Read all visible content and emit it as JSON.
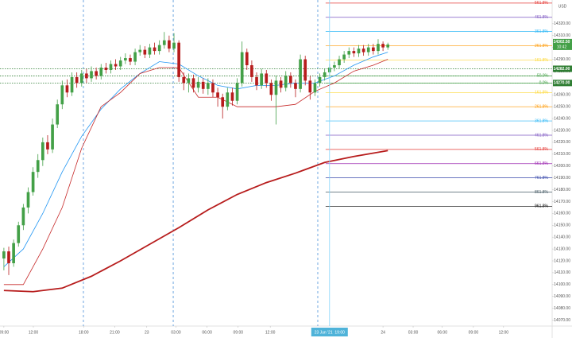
{
  "chart_data": {
    "type": "candlestick",
    "currency": "USD",
    "up_color": "#43a047",
    "down_color": "#b71c1c",
    "x": [
      0,
      0.5,
      1,
      1.5,
      2,
      2.5,
      3,
      3.5,
      4,
      4.5,
      5,
      5.5,
      6,
      6.5,
      7,
      7.5,
      8,
      8.5,
      9,
      9.5,
      10,
      10.5,
      11,
      11.5,
      12,
      12.5,
      13,
      13.5,
      14,
      14.5,
      15,
      15.5,
      16,
      16.5,
      17,
      17.5,
      18,
      18.5,
      19,
      19.5,
      20,
      20.5,
      21,
      21.5,
      22,
      22.5,
      23,
      23.5,
      24,
      24.5,
      25,
      25.5,
      26,
      26.5,
      27,
      27.5,
      28,
      28.5,
      29,
      29.5,
      30,
      30.5,
      31,
      31.5,
      32,
      32.5,
      33,
      33.5,
      34,
      34.5,
      35,
      35.5,
      36,
      36.5,
      37,
      37.5,
      38,
      38.5,
      39,
      39.5
    ],
    "open": [
      14122,
      14128,
      14118,
      14135,
      14150,
      14165,
      14178,
      14195,
      14205,
      14220,
      14214,
      14235,
      14252,
      14268,
      14262,
      14275,
      14270,
      14278,
      14274,
      14280,
      14276,
      14283,
      14281,
      14286,
      14284,
      14289,
      14291,
      14288,
      14296,
      14298,
      14294,
      14300,
      14297,
      14302,
      14306,
      14299,
      14304,
      14275,
      14270,
      14274,
      14266,
      14271,
      14265,
      14270,
      14262,
      14258,
      14250,
      14262,
      14255,
      14270,
      14296,
      14285,
      14275,
      14268,
      14278,
      14270,
      14260,
      14272,
      14266,
      14276,
      14270,
      14265,
      14290,
      14272,
      14262,
      14270,
      14275,
      14279,
      14283,
      14285,
      14290,
      14294,
      14297,
      14295,
      14299,
      14296,
      14300,
      14297,
      14303,
      14300
    ],
    "high": [
      14131,
      14132,
      14138,
      14153,
      14168,
      14182,
      14199,
      14210,
      14224,
      14226,
      14240,
      14256,
      14272,
      14273,
      14279,
      14279,
      14281,
      14282,
      14284,
      14283,
      14286,
      14287,
      14289,
      14290,
      14292,
      14295,
      14294,
      14299,
      14302,
      14301,
      14303,
      14304,
      14306,
      14313,
      14310,
      14312,
      14306,
      14279,
      14278,
      14277,
      14275,
      14274,
      14274,
      14273,
      14266,
      14261,
      14266,
      14266,
      14274,
      14305,
      14299,
      14289,
      14279,
      14282,
      14281,
      14273,
      14276,
      14275,
      14280,
      14279,
      14273,
      14294,
      14293,
      14276,
      14273,
      14278,
      14282,
      14286,
      14288,
      14293,
      14297,
      14300,
      14300,
      14302,
      14302,
      14303,
      14303,
      14307,
      14305,
      14304
    ],
    "low": [
      14112,
      14108,
      14115,
      14132,
      14146,
      14160,
      14175,
      14190,
      14200,
      14210,
      14211,
      14232,
      14248,
      14258,
      14259,
      14266,
      14267,
      14270,
      14271,
      14273,
      14273,
      14278,
      14278,
      14281,
      14281,
      14286,
      14285,
      14285,
      14293,
      14291,
      14291,
      14294,
      14294,
      14299,
      14296,
      14296,
      14271,
      14264,
      14262,
      14262,
      14262,
      14261,
      14260,
      14258,
      14250,
      14240,
      14247,
      14251,
      14252,
      14267,
      14281,
      14271,
      14264,
      14265,
      14266,
      14255,
      14235,
      14262,
      14263,
      14266,
      14258,
      14262,
      14268,
      14256,
      14259,
      14267,
      14272,
      14276,
      14280,
      14282,
      14287,
      14291,
      14292,
      14292,
      14293,
      14293,
      14294,
      14294,
      14297,
      14298
    ],
    "close": [
      14128,
      14118,
      14135,
      14150,
      14165,
      14178,
      14195,
      14205,
      14220,
      14214,
      14235,
      14252,
      14268,
      14262,
      14275,
      14270,
      14278,
      14274,
      14280,
      14276,
      14283,
      14281,
      14286,
      14284,
      14289,
      14291,
      14288,
      14296,
      14298,
      14294,
      14300,
      14297,
      14302,
      14306,
      14299,
      14304,
      14275,
      14270,
      14274,
      14266,
      14271,
      14265,
      14270,
      14262,
      14258,
      14250,
      14262,
      14255,
      14270,
      14296,
      14285,
      14275,
      14268,
      14278,
      14270,
      14260,
      14272,
      14266,
      14276,
      14270,
      14265,
      14290,
      14272,
      14262,
      14270,
      14275,
      14279,
      14283,
      14285,
      14290,
      14294,
      14297,
      14295,
      14299,
      14296,
      14300,
      14297,
      14303,
      14300,
      14302.5
    ],
    "lines": [
      {
        "color": "#2196f3",
        "weight": "normal",
        "x": [
          0,
          2,
          4,
          6,
          8,
          10,
          12,
          14,
          16,
          18,
          20,
          22,
          24,
          26,
          28,
          30,
          32,
          34,
          36,
          38,
          39.5
        ],
        "values": [
          14115,
          14130,
          14160,
          14195,
          14225,
          14248,
          14265,
          14278,
          14288,
          14286,
          14276,
          14268,
          14265,
          14268,
          14268,
          14270,
          14270,
          14276,
          14285,
          14292,
          14296
        ]
      },
      {
        "color": "#c62828",
        "weight": "normal",
        "x": [
          0,
          2,
          4,
          6,
          8,
          10,
          12,
          14,
          16,
          18,
          20,
          22,
          24,
          26,
          28,
          30,
          32,
          34,
          36,
          38,
          39.5
        ],
        "values": [
          14100,
          14100,
          14130,
          14165,
          14215,
          14250,
          14262,
          14278,
          14283,
          14283,
          14258,
          14258,
          14250,
          14250,
          14250,
          14252,
          14263,
          14270,
          14280,
          14285,
          14290
        ]
      },
      {
        "color": "#b71c1c",
        "weight": "bold",
        "x": [
          0,
          3,
          6,
          9,
          12,
          15,
          18,
          21,
          24,
          27,
          30,
          33,
          36,
          39.5
        ],
        "values": [
          14095,
          14094,
          14097,
          14107,
          14120,
          14134,
          14148,
          14163,
          14176,
          14186,
          14194,
          14203,
          14208,
          14213
        ]
      }
    ],
    "fib": {
      "start": 33.1,
      "levels": [
        {
          "value": 14337.4,
          "label": "561.8%",
          "color": "#e53935"
        },
        {
          "value": 14325.4,
          "label": "461.8%",
          "color": "#7e57c2"
        },
        {
          "value": 14313.4,
          "label": "361.8%",
          "color": "#29b6f6"
        },
        {
          "value": 14301.4,
          "label": "261.8%",
          "color": "#ff9800"
        },
        {
          "value": 14289.4,
          "label": "161.8%",
          "color": "#fdd835"
        },
        {
          "value": 14276,
          "label": "50.0%",
          "color": "#43a047"
        },
        {
          "value": 14270,
          "label": "0.0%",
          "color": "#43a047"
        },
        {
          "value": 14262,
          "label": "161.8%",
          "color": "#fdd835"
        },
        {
          "value": 14250,
          "label": "261.8%",
          "color": "#ff9800"
        },
        {
          "value": 14238,
          "label": "361.8%",
          "color": "#29b6f6"
        },
        {
          "value": 14226,
          "label": "461.8%",
          "color": "#7e57c2"
        },
        {
          "value": 14214,
          "label": "561.8%",
          "color": "#e53935"
        },
        {
          "value": 14202,
          "label": "661.8%",
          "color": "#9c27b0"
        },
        {
          "value": 14190,
          "label": "761.8%",
          "color": "#3949ab"
        },
        {
          "value": 14178,
          "label": "861.8%",
          "color": "#455a64"
        },
        {
          "value": 14166,
          "label": "961.8%",
          "color": "#000000"
        }
      ]
    },
    "hlines": [
      {
        "value": 14282,
        "label": "14282.00"
      },
      14276,
      {
        "value": 14270,
        "label": "14270.00"
      }
    ],
    "hline_color": "#2e7d32",
    "last_price": {
      "value": 14302.5,
      "label": "14302.50"
    },
    "countdown": "10:42",
    "session_breaks": [
      8.18,
      17.42,
      32.29
    ],
    "crosshair": {
      "x": 33.5,
      "label": "23 Jun '21  19:00"
    },
    "xlim": [
      -0.4,
      56.4
    ],
    "ylim": [
      14065,
      14340
    ],
    "xticks": [
      {
        "value": 0,
        "label": "09:00"
      },
      {
        "value": 3.03,
        "label": "12:00"
      },
      {
        "value": 8.2,
        "label": "18:00"
      },
      {
        "value": 11.4,
        "label": "21:00"
      },
      {
        "value": 14.7,
        "label": "23"
      },
      {
        "value": 17.7,
        "label": "03:00"
      },
      {
        "value": 20.9,
        "label": "06:00"
      },
      {
        "value": 24.1,
        "label": "09:00"
      },
      {
        "value": 27.4,
        "label": "12:00"
      },
      {
        "value": 39,
        "label": "24"
      },
      {
        "value": 42.1,
        "label": "03:00"
      },
      {
        "value": 45.1,
        "label": "06:00"
      },
      {
        "value": 48.3,
        "label": "09:00"
      },
      {
        "value": 51.4,
        "label": "12:00"
      }
    ],
    "yticks": [
      {
        "value": 14070,
        "label": "14070.00"
      },
      {
        "value": 14080,
        "label": "14080.00"
      },
      {
        "value": 14090,
        "label": "14090.00"
      },
      {
        "value": 14100,
        "label": "14100.00"
      },
      {
        "value": 14110,
        "label": "14110.00"
      },
      {
        "value": 14120,
        "label": "14120.00"
      },
      {
        "value": 14130,
        "label": "14130.00"
      },
      {
        "value": 14140,
        "label": "14140.00"
      },
      {
        "value": 14150,
        "label": "14150.00"
      },
      {
        "value": 14160,
        "label": "14160.00"
      },
      {
        "value": 14170,
        "label": "14170.00"
      },
      {
        "value": 14180,
        "label": "14180.00"
      },
      {
        "value": 14190,
        "label": "14190.00"
      },
      {
        "value": 14200,
        "label": "14200.00"
      },
      {
        "value": 14210,
        "label": "14210.00"
      },
      {
        "value": 14220,
        "label": "14220.00"
      },
      {
        "value": 14230,
        "label": "14230.00"
      },
      {
        "value": 14240,
        "label": "14240.00"
      },
      {
        "value": 14250,
        "label": "14250.00"
      },
      {
        "value": 14260,
        "label": "14260.00"
      },
      {
        "value": 14270,
        "label": "14270.00"
      },
      {
        "value": 14280,
        "label": "14280.00"
      },
      {
        "value": 14290,
        "label": "14290.00"
      },
      {
        "value": 14300,
        "label": "14300.00"
      },
      {
        "value": 14310,
        "label": "14310.00"
      },
      {
        "value": 14320,
        "label": "14320.00"
      }
    ]
  }
}
